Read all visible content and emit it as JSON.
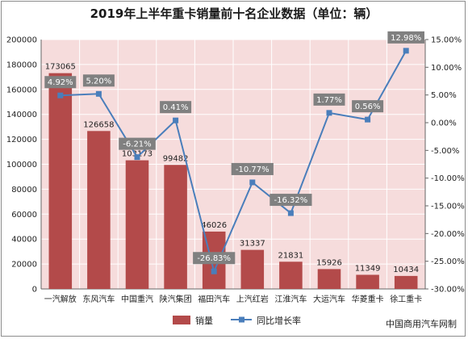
{
  "chart_data": {
    "type": "bar",
    "title": "2019年上半年重卡销量前十名企业数据（单位：辆）",
    "categories": [
      "一汽解放",
      "东风汽车",
      "中国重汽",
      "陕汽集团",
      "福田汽车",
      "上汽红岩",
      "江淮汽车",
      "大运汽车",
      "华菱重卡",
      "徐工重卡"
    ],
    "series": [
      {
        "name": "销量",
        "type": "bar",
        "axis": "left",
        "values": [
          173065,
          126658,
          103173,
          99482,
          46026,
          31337,
          21831,
          15926,
          11349,
          10434
        ],
        "labels": [
          "173065",
          "126658",
          "103173",
          "99482",
          "46026",
          "31337",
          "21831",
          "15926",
          "11349",
          "10434"
        ],
        "color": "#b34a4a"
      },
      {
        "name": "同比增长率",
        "type": "line",
        "axis": "right",
        "values": [
          4.92,
          5.2,
          -6.21,
          0.41,
          -26.83,
          -10.77,
          -16.32,
          1.77,
          0.56,
          12.98
        ],
        "labels": [
          "4.92%",
          "5.20%",
          "-6.21%",
          "0.41%",
          "-26.83%",
          "-10.77%",
          "-16.32%",
          "1.77%",
          "0.56%",
          "12.98%"
        ],
        "color": "#4a7ebb"
      }
    ],
    "left_axis": {
      "ylim": [
        0,
        200000
      ],
      "ticks": [
        "0",
        "20000",
        "40000",
        "60000",
        "80000",
        "100000",
        "120000",
        "140000",
        "160000",
        "180000",
        "200000"
      ]
    },
    "right_axis": {
      "ylim": [
        -30,
        15
      ],
      "ticks": [
        "-30.00%",
        "-25.00%",
        "-20.00%",
        "-15.00%",
        "-10.00%",
        "-5.00%",
        "0.00%",
        "5.00%",
        "10.00%",
        "15.00%"
      ]
    },
    "grid": true,
    "legend_position": "bottom",
    "plot_background": "#f6dcdc",
    "label_box_color": "#808080"
  },
  "source": "中国商用汽车网制"
}
